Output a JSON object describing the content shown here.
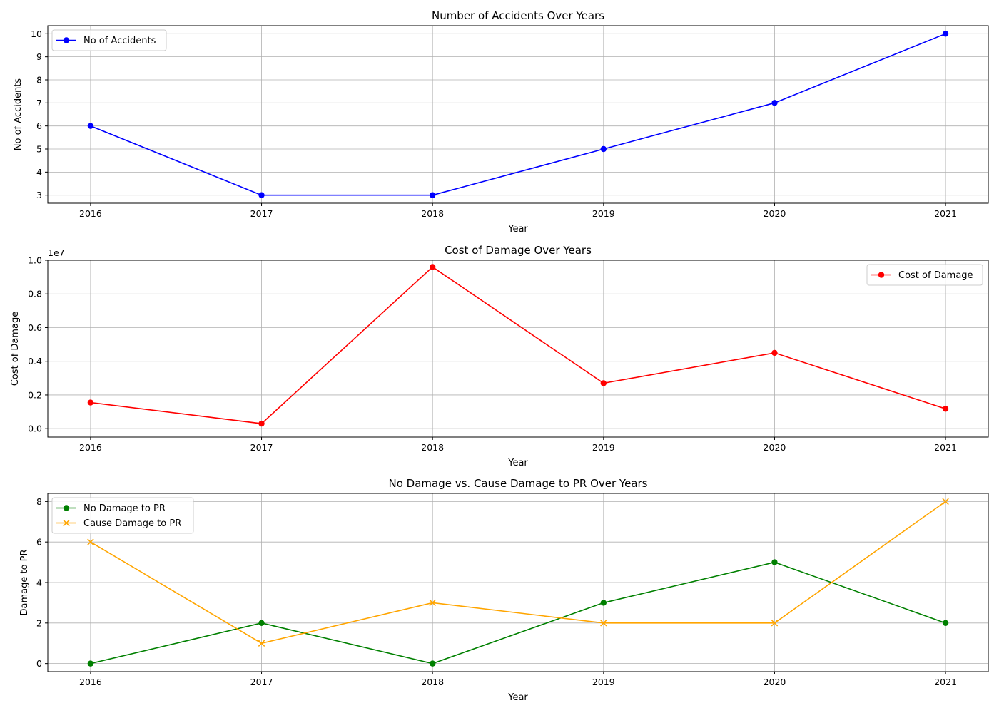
{
  "chart_data": [
    {
      "type": "line",
      "title": "Number of Accidents Over Years",
      "xlabel": "Year",
      "ylabel": "No of Accidents",
      "x": [
        2016,
        2017,
        2018,
        2019,
        2020,
        2021
      ],
      "xlim": [
        2015.75,
        2021.25
      ],
      "ylim": [
        2.65,
        10.35
      ],
      "yticks": [
        3,
        4,
        5,
        6,
        7,
        8,
        9,
        10
      ],
      "ytick_labels": [
        "3",
        "4",
        "5",
        "6",
        "7",
        "8",
        "9",
        "10"
      ],
      "grid": true,
      "legend": "upper-left",
      "series": [
        {
          "name": "No of Accidents",
          "values": [
            6,
            3,
            3,
            5,
            7,
            10
          ],
          "color": "#0000ff",
          "marker": "circle"
        }
      ]
    },
    {
      "type": "line",
      "title": "Cost of Damage Over Years",
      "xlabel": "Year",
      "ylabel": "Cost of Damage",
      "offset_label": "1e7",
      "x": [
        2016,
        2017,
        2018,
        2019,
        2020,
        2021
      ],
      "xlim": [
        2015.75,
        2021.25
      ],
      "ylim": [
        -0.05,
        1.0
      ],
      "yticks": [
        0.0,
        0.2,
        0.4,
        0.6,
        0.8,
        1.0
      ],
      "ytick_labels": [
        "0.0",
        "0.2",
        "0.4",
        "0.6",
        "0.8",
        "1.0"
      ],
      "grid": true,
      "legend": "upper-right",
      "series": [
        {
          "name": "Cost of Damage",
          "values": [
            0.155,
            0.03,
            0.96,
            0.27,
            0.45,
            0.118
          ],
          "color": "#ff0000",
          "marker": "circle"
        }
      ]
    },
    {
      "type": "line",
      "title": "No Damage vs. Cause Damage to PR Over Years",
      "xlabel": "Year",
      "ylabel": "Damage to PR",
      "x": [
        2016,
        2017,
        2018,
        2019,
        2020,
        2021
      ],
      "xlim": [
        2015.75,
        2021.25
      ],
      "ylim": [
        -0.4,
        8.4
      ],
      "yticks": [
        0,
        2,
        4,
        6,
        8
      ],
      "ytick_labels": [
        "0",
        "2",
        "4",
        "6",
        "8"
      ],
      "grid": true,
      "legend": "upper-left",
      "series": [
        {
          "name": "No Damage to PR",
          "values": [
            0,
            2,
            0,
            3,
            5,
            2
          ],
          "color": "#008000",
          "marker": "circle"
        },
        {
          "name": "Cause Damage to PR",
          "values": [
            6,
            1,
            3,
            2,
            2,
            8
          ],
          "color": "#ffa500",
          "marker": "x"
        }
      ]
    }
  ]
}
